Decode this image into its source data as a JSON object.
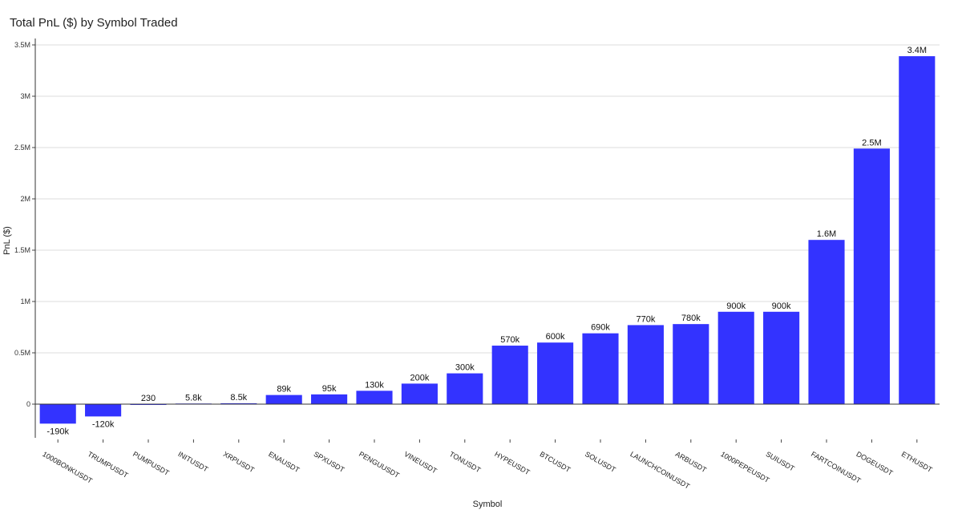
{
  "chart_data": {
    "type": "bar",
    "title": "Total PnL ($) by Symbol Traded",
    "xlabel": "Symbol",
    "ylabel": "PnL ($)",
    "ylim": [
      -280000,
      3550000
    ],
    "yticks": [
      {
        "value": 0,
        "label": "0"
      },
      {
        "value": 500000,
        "label": "0.5M"
      },
      {
        "value": 1000000,
        "label": "1M"
      },
      {
        "value": 1500000,
        "label": "1.5M"
      },
      {
        "value": 2000000,
        "label": "2M"
      },
      {
        "value": 2500000,
        "label": "2.5M"
      },
      {
        "value": 3000000,
        "label": "3M"
      },
      {
        "value": 3500000,
        "label": "3.5M"
      }
    ],
    "grid": true,
    "bar_color": "#3333ff",
    "categories": [
      "1000BONKUSDT",
      "TRUMPUSDT",
      "PUMPUSDT",
      "INITUSDT",
      "XRPUSDT",
      "ENAUSDT",
      "SPXUSDT",
      "PENGUUSDT",
      "VINEUSDT",
      "TONUSDT",
      "HYPEUSDT",
      "BTCUSDT",
      "SOLUSDT",
      "LAUNCHCOINUSDT",
      "ARBUSDT",
      "1000PEPEUSDT",
      "SUIUSDT",
      "FARTCOINUSDT",
      "DOGEUSDT",
      "ETHUSDT"
    ],
    "values": [
      -190000,
      -120000,
      230,
      5800,
      8500,
      89000,
      95000,
      130000,
      200000,
      300000,
      570000,
      600000,
      690000,
      770000,
      780000,
      900000,
      900000,
      1600000,
      2490000,
      3390000
    ],
    "data_labels": [
      "-190k",
      "-120k",
      "230",
      "5.8k",
      "8.5k",
      "89k",
      "95k",
      "130k",
      "200k",
      "300k",
      "570k",
      "600k",
      "690k",
      "770k",
      "780k",
      "900k",
      "900k",
      "1.6M",
      "2.5M",
      "3.4M"
    ]
  }
}
